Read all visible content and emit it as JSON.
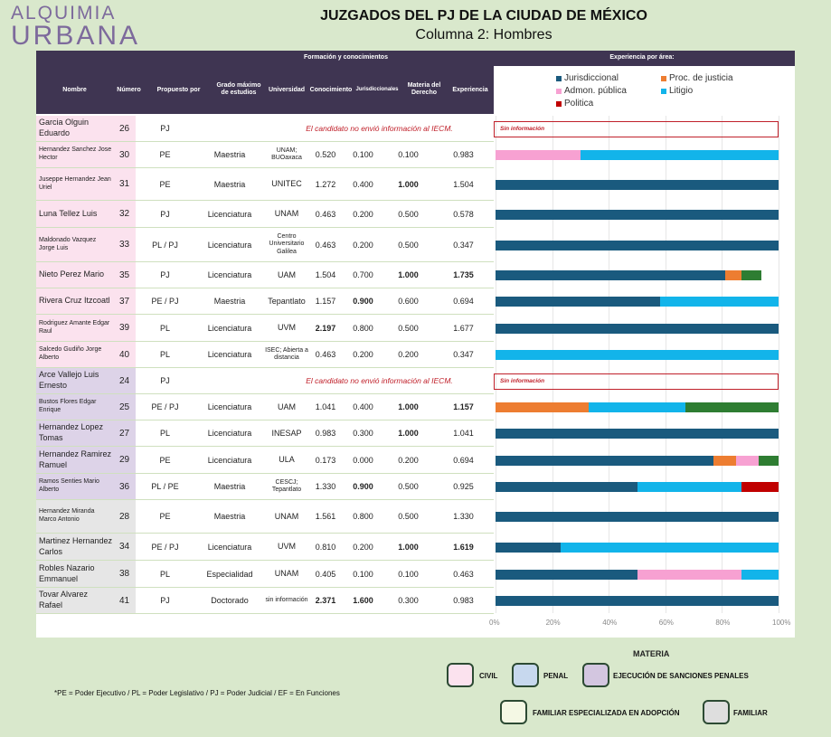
{
  "brand": {
    "line1": "ALQUIMIA",
    "line2": "URBANA"
  },
  "title": "JUZGADOS DEL PJ DE LA CIUDAD DE MÉXICO",
  "subtitle": "Columna 2: Hombres",
  "table": {
    "group_header_formacion": "Formación y conocimientos",
    "group_header_experiencia": "Experiencia por área:",
    "columns": [
      "Nombre",
      "Número",
      "Propuesto por",
      "Grado máximo de estudios",
      "Universidad",
      "Conocimiento",
      "Jurisdiccionales",
      "Materia del Derecho",
      "Experiencia"
    ],
    "no_info_text": "El candidato no envió información al IECM.",
    "sin_info_label": "Sin información",
    "rows": [
      {
        "name": "Garcia Olguin Eduardo",
        "num": "26",
        "prop": "PJ",
        "grado": "",
        "uni": "",
        "con": "",
        "jur": "",
        "mat": "",
        "exp": "",
        "noinfo": true
      },
      {
        "name": "Hernandez Sanchez Jose Hector",
        "num": "30",
        "prop": "PE",
        "grado": "Maestria",
        "uni": "UNAM; BUOaxaca",
        "con": "0.520",
        "jur": "0.100",
        "mat": "0.100",
        "exp": "0.983"
      },
      {
        "name": "Juseppe Hernandez Jean Uriel",
        "num": "31",
        "prop": "PE",
        "grado": "Maestria",
        "uni": "UNITEC",
        "con": "1.272",
        "jur": "0.400",
        "mat": "1.000",
        "exp": "1.504"
      },
      {
        "name": "Luna Tellez Luis",
        "num": "32",
        "prop": "PJ",
        "grado": "Licenciatura",
        "uni": "UNAM",
        "con": "0.463",
        "jur": "0.200",
        "mat": "0.500",
        "exp": "0.578"
      },
      {
        "name": "Maldonado Vazquez Jorge Luis",
        "num": "33",
        "prop": "PL / PJ",
        "grado": "Licenciatura",
        "uni": "Centro Universitario Galilea",
        "con": "0.463",
        "jur": "0.200",
        "mat": "0.500",
        "exp": "0.347"
      },
      {
        "name": "Nieto Perez Mario",
        "num": "35",
        "prop": "PJ",
        "grado": "Licenciatura",
        "uni": "UAM",
        "con": "1.504",
        "jur": "0.700",
        "mat": "1.000",
        "exp": "1.735"
      },
      {
        "name": "Rivera Cruz Itzcoatl",
        "num": "37",
        "prop": "PE / PJ",
        "grado": "Maestria",
        "uni": "Tepantlato",
        "con": "1.157",
        "jur": "0.900",
        "mat": "0.600",
        "exp": "0.694"
      },
      {
        "name": "Rodriguez Amante Edgar Raul",
        "num": "39",
        "prop": "PL",
        "grado": "Licenciatura",
        "uni": "UVM",
        "con": "2.197",
        "jur": "0.800",
        "mat": "0.500",
        "exp": "1.677"
      },
      {
        "name": "Salcedo Gudiño Jorge Alberto",
        "num": "40",
        "prop": "PL",
        "grado": "Licenciatura",
        "uni": "ISEC; Abierta a distancia",
        "con": "0.463",
        "jur": "0.200",
        "mat": "0.200",
        "exp": "0.347"
      },
      {
        "name": "Arce Vallejo Luis Ernesto",
        "num": "24",
        "prop": "PJ",
        "grado": "",
        "uni": "",
        "con": "",
        "jur": "",
        "mat": "",
        "exp": "",
        "noinfo": true
      },
      {
        "name": "Bustos Flores Edgar Enrique",
        "num": "25",
        "prop": "PE / PJ",
        "grado": "Licenciatura",
        "uni": "UAM",
        "con": "1.041",
        "jur": "0.400",
        "mat": "1.000",
        "exp": "1.157"
      },
      {
        "name": "Hernandez Lopez Tomas",
        "num": "27",
        "prop": "PL",
        "grado": "Licenciatura",
        "uni": "INESAP",
        "con": "0.983",
        "jur": "0.300",
        "mat": "1.000",
        "exp": "1.041"
      },
      {
        "name": "Hernandez Ramirez Ramuel",
        "num": "29",
        "prop": "PE",
        "grado": "Licenciatura",
        "uni": "ULA",
        "con": "0.173",
        "jur": "0.000",
        "mat": "0.200",
        "exp": "0.694"
      },
      {
        "name": "Ramos Senties Mario Alberto",
        "num": "36",
        "prop": "PL / PE",
        "grado": "Maestria",
        "uni": "CESCJ; Tepantlato",
        "con": "1.330",
        "jur": "0.900",
        "mat": "0.500",
        "exp": "0.925"
      },
      {
        "name": "Hernandez Miranda Marco Antonio",
        "num": "28",
        "prop": "PE",
        "grado": "Maestria",
        "uni": "UNAM",
        "con": "1.561",
        "jur": "0.800",
        "mat": "0.500",
        "exp": "1.330"
      },
      {
        "name": "Martinez Hernandez Carlos",
        "num": "34",
        "prop": "PE / PJ",
        "grado": "Licenciatura",
        "uni": "UVM",
        "con": "0.810",
        "jur": "0.200",
        "mat": "1.000",
        "exp": "1.619"
      },
      {
        "name": "Robles Nazario Emmanuel",
        "num": "38",
        "prop": "PL",
        "grado": "Especialidad",
        "uni": "UNAM",
        "con": "0.405",
        "jur": "0.100",
        "mat": "0.100",
        "exp": "0.463"
      },
      {
        "name": "Tovar Alvarez Rafael",
        "num": "41",
        "prop": "PJ",
        "grado": "Doctorado",
        "uni": "sin información",
        "con": "2.371",
        "jur": "1.600",
        "mat": "0.300",
        "exp": "0.983"
      }
    ]
  },
  "chart_data": {
    "type": "bar",
    "stacked": "percent",
    "orientation": "horizontal",
    "title": "Experiencia por área:",
    "xlim": [
      0,
      100
    ],
    "ticks": [
      "0%",
      "20%",
      "40%",
      "60%",
      "80%",
      "100%"
    ],
    "legend_placement": "top",
    "categories": [
      "Garcia Olguin Eduardo",
      "Hernandez Sanchez Jose Hector",
      "Juseppe Hernandez Jean Uriel",
      "Luna Tellez Luis",
      "Maldonado Vazquez Jorge Luis",
      "Nieto Perez Mario",
      "Rivera Cruz Itzcoatl",
      "Rodriguez Amante Edgar Raul",
      "Salcedo Gudiño Jorge Alberto",
      "Arce Vallejo Luis Ernesto",
      "Bustos Flores Edgar Enrique",
      "Hernandez Lopez Tomas",
      "Hernandez Ramirez Ramuel",
      "Ramos Senties Mario Alberto",
      "Hernandez Miranda Marco Antonio",
      "Martinez Hernandez Carlos",
      "Robles Nazario Emmanuel",
      "Tovar Alvarez Rafael"
    ],
    "series": [
      {
        "name": "Jurisdiccional",
        "color": "#1a5a7e",
        "values": [
          0,
          0,
          100,
          100,
          100,
          81,
          58,
          100,
          0,
          0,
          0,
          100,
          77,
          50,
          100,
          23,
          50,
          100
        ]
      },
      {
        "name": "Proc. de justicia",
        "color": "#ed7d31",
        "values": [
          0,
          0,
          0,
          0,
          0,
          6,
          0,
          0,
          0,
          0,
          33,
          0,
          8,
          0,
          0,
          0,
          0,
          0
        ]
      },
      {
        "name": "Admon. pública",
        "color": "#f7a1d2",
        "values": [
          0,
          30,
          0,
          0,
          0,
          0,
          0,
          0,
          0,
          0,
          0,
          0,
          8,
          0,
          0,
          0,
          37,
          0
        ]
      },
      {
        "name": "Litigio",
        "color": "#12b4ea",
        "values": [
          0,
          70,
          0,
          0,
          0,
          0,
          42,
          0,
          100,
          0,
          34,
          0,
          0,
          37,
          0,
          77,
          13,
          0
        ]
      },
      {
        "name": "Politica",
        "color": "#c00000",
        "values": [
          0,
          0,
          0,
          0,
          0,
          0,
          0,
          0,
          0,
          0,
          0,
          0,
          0,
          13,
          0,
          0,
          0,
          0
        ]
      },
      {
        "name": "",
        "color": "#2e7d32",
        "values": [
          0,
          0,
          0,
          0,
          0,
          7,
          0,
          0,
          0,
          0,
          33,
          0,
          7,
          0,
          0,
          0,
          0,
          0
        ]
      }
    ],
    "no_data_rows": [
      0,
      9
    ]
  },
  "materia": {
    "title": "MATERIA",
    "items": [
      {
        "label": "CIVIL",
        "color": "#fbe2ee"
      },
      {
        "label": "PENAL",
        "color": "#c7d8ee"
      },
      {
        "label": "EJECUCIÓN DE SANCIONES PENALES",
        "color": "#d3c6e0"
      },
      {
        "label": "FAMILIAR ESPECIALIZADA EN ADOPCIÓN",
        "color": "#f4f8e4"
      },
      {
        "label": "FAMILIAR",
        "color": "#dedede"
      }
    ]
  },
  "footnote": "*PE = Poder Ejecutivo / PL = Poder Legislativo / PJ = Poder Judicial / EF = En Funciones",
  "row_name_colors": [
    "#fbe2ee",
    "#fbe2ee",
    "#fbe2ee",
    "#fbe2ee",
    "#fbe2ee",
    "#fbe2ee",
    "#fbe2ee",
    "#fbe2ee",
    "#fbe2ee",
    "#ddd3e8",
    "#ddd3e8",
    "#ddd3e8",
    "#ddd3e8",
    "#ddd3e8",
    "#e6e6e6",
    "#e6e6e6",
    "#e6e6e6",
    "#e6e6e6"
  ]
}
